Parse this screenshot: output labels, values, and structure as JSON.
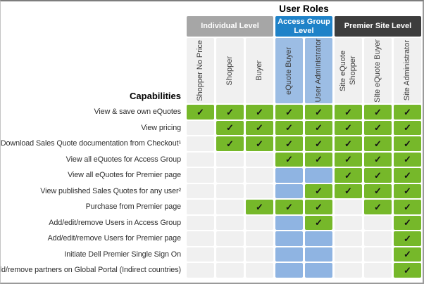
{
  "title": "User Roles",
  "capabilities_label": "Capabilities",
  "check_glyph": "✓",
  "colors": {
    "green": "#76b82a",
    "light_gray": "#f0f0f0",
    "cell_blue": "#8fb4e2",
    "header_blue": "#9cbde4",
    "group_gray": "#a6a6a6",
    "group_blue": "#1f82c8",
    "group_dark": "#3d3d3d"
  },
  "groups": [
    {
      "label": "Individual Level",
      "columns": 3
    },
    {
      "label": "Access Group Level",
      "columns": 2
    },
    {
      "label": "Premier Site Level",
      "columns": 3
    }
  ],
  "columns": [
    {
      "label": "Shopper No Price",
      "highlight": false
    },
    {
      "label": "Shopper",
      "highlight": false
    },
    {
      "label": "Buyer",
      "highlight": false
    },
    {
      "label": "eQuote Buyer",
      "highlight": true
    },
    {
      "label": "User Administrator",
      "highlight": true
    },
    {
      "label": "Site eQuote Shopper",
      "highlight": false
    },
    {
      "label": "Site eQuote Buyer",
      "highlight": false
    },
    {
      "label": "Site Administrator",
      "highlight": false
    }
  ],
  "cell_legend": {
    "check": "green cell with checkmark",
    "empty": "light gray cell",
    "blue": "light blue cell"
  },
  "rows": [
    {
      "label": "View & save own eQuotes",
      "cells": [
        "check",
        "check",
        "check",
        "check",
        "check",
        "check",
        "check",
        "check"
      ]
    },
    {
      "label": "View pricing",
      "cells": [
        "empty",
        "check",
        "check",
        "check",
        "check",
        "check",
        "check",
        "check"
      ]
    },
    {
      "label": "Download Sales Quote documentation from Checkout¹",
      "cells": [
        "empty",
        "check",
        "check",
        "check",
        "check",
        "check",
        "check",
        "check"
      ]
    },
    {
      "label": "View all eQuotes for Access Group",
      "cells": [
        "empty",
        "empty",
        "empty",
        "check",
        "check",
        "check",
        "check",
        "check"
      ]
    },
    {
      "label": "View all eQuotes for Premier page",
      "cells": [
        "empty",
        "empty",
        "empty",
        "blue",
        "blue",
        "check",
        "check",
        "check"
      ]
    },
    {
      "label": "View published Sales Quotes for any user²",
      "cells": [
        "empty",
        "empty",
        "empty",
        "blue",
        "check",
        "check",
        "check",
        "check"
      ]
    },
    {
      "label": "Purchase from Premier page",
      "cells": [
        "empty",
        "empty",
        "check",
        "check",
        "check",
        "empty",
        "check",
        "check"
      ]
    },
    {
      "label": "Add/edit/remove Users in Access Group",
      "cells": [
        "empty",
        "empty",
        "empty",
        "blue",
        "check",
        "empty",
        "empty",
        "check"
      ]
    },
    {
      "label": "Add/edit/remove Users for Premier page",
      "cells": [
        "empty",
        "empty",
        "empty",
        "blue",
        "blue",
        "empty",
        "empty",
        "check"
      ]
    },
    {
      "label": "Initiate Dell Premier Single Sign On",
      "cells": [
        "empty",
        "empty",
        "empty",
        "blue",
        "blue",
        "empty",
        "empty",
        "check"
      ]
    },
    {
      "label": "Add/remove partners on Global Portal (Indirect countries)",
      "cells": [
        "empty",
        "empty",
        "empty",
        "blue",
        "blue",
        "empty",
        "empty",
        "check"
      ]
    }
  ]
}
